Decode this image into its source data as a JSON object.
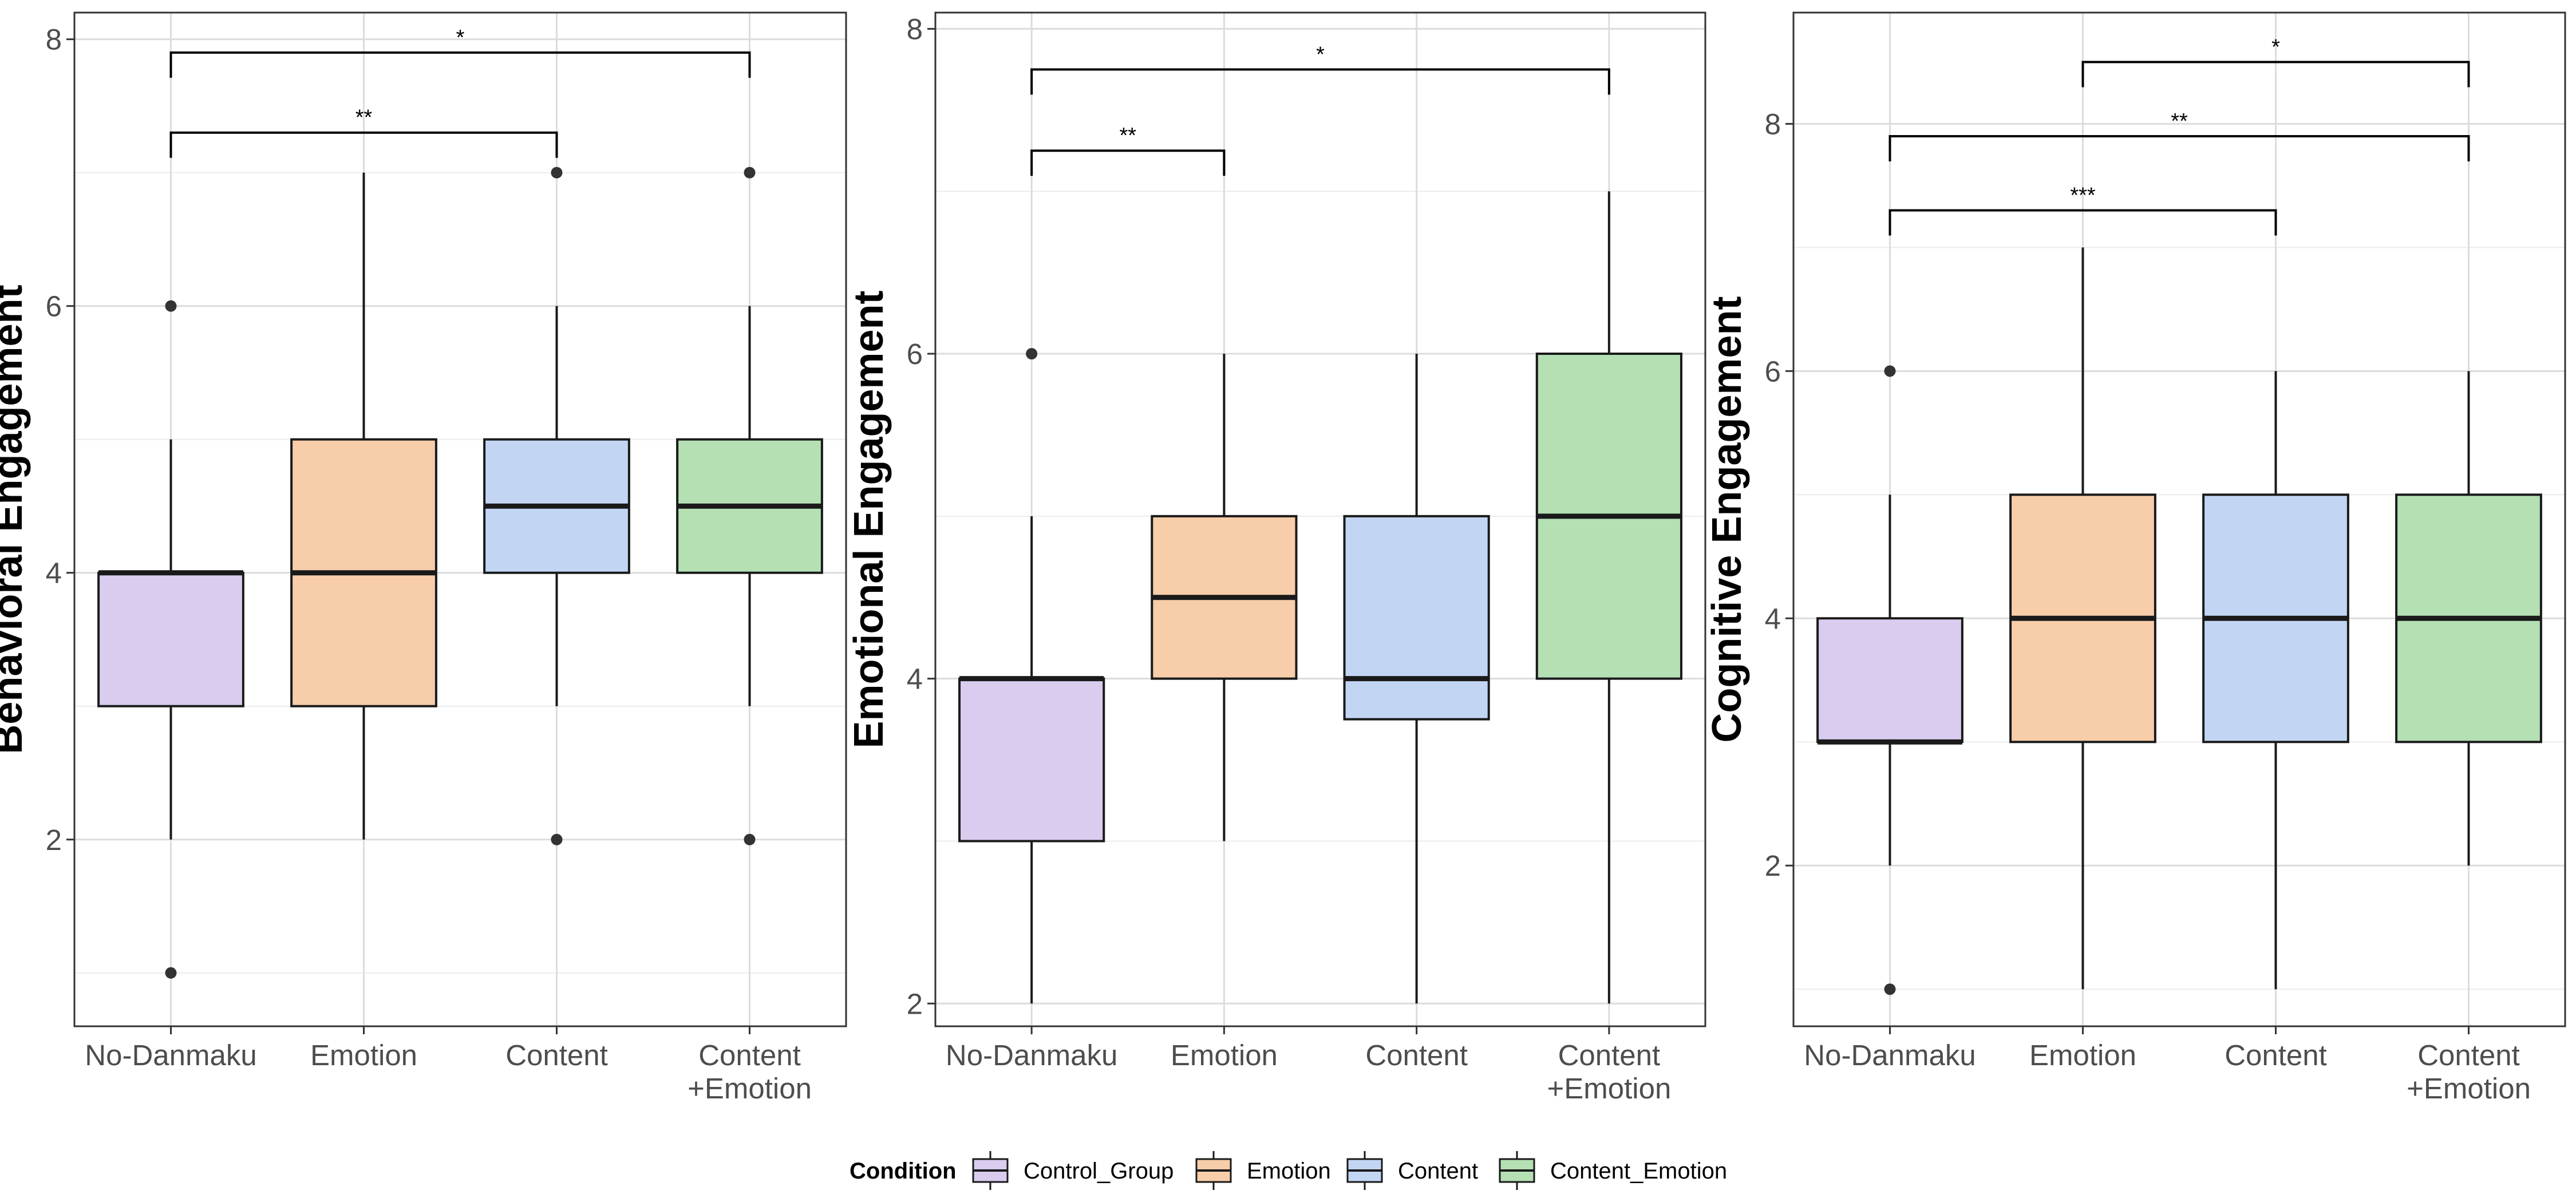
{
  "legend": {
    "title": "Condition",
    "items": [
      {
        "label": "Control_Group",
        "color": "#d9ccef"
      },
      {
        "label": "Emotion",
        "color": "#f7cdaa"
      },
      {
        "label": "Content",
        "color": "#c2d6f4"
      },
      {
        "label": "Content_Emotion",
        "color": "#b4e0b4"
      }
    ]
  },
  "chart_data": [
    {
      "type": "boxplot",
      "ylabel": "Behavioral Engagement",
      "xlabel": "",
      "categories": [
        "No-Danmaku",
        "Emotion",
        "Content",
        "Content\n+Emotion"
      ],
      "ylim": [
        0.6,
        8.2
      ],
      "yticks": [
        2,
        4,
        6,
        8
      ],
      "boxes": [
        {
          "q1": 3,
          "median": 4,
          "q3": 4,
          "whisker_low": 2,
          "whisker_high": 5,
          "outliers": [
            6,
            1
          ]
        },
        {
          "q1": 3,
          "median": 4,
          "q3": 5,
          "whisker_low": 2,
          "whisker_high": 7,
          "outliers": []
        },
        {
          "q1": 4,
          "median": 4.5,
          "q3": 5,
          "whisker_low": 3,
          "whisker_high": 6,
          "outliers": [
            7,
            2
          ]
        },
        {
          "q1": 4,
          "median": 4.5,
          "q3": 5,
          "whisker_low": 3,
          "whisker_high": 6,
          "outliers": [
            7,
            2
          ]
        }
      ],
      "significance": [
        {
          "from": 0,
          "to": 3,
          "y": 7.9,
          "label": "*"
        },
        {
          "from": 0,
          "to": 2,
          "y": 7.3,
          "label": "**"
        }
      ]
    },
    {
      "type": "boxplot",
      "ylabel": "Emotional Engagement",
      "xlabel": "",
      "categories": [
        "No-Danmaku",
        "Emotion",
        "Content",
        "Content\n+Emotion"
      ],
      "ylim": [
        1.86,
        8.1
      ],
      "yticks": [
        2,
        4,
        6,
        8
      ],
      "boxes": [
        {
          "q1": 3,
          "median": 4,
          "q3": 4,
          "whisker_low": 2,
          "whisker_high": 5,
          "outliers": [
            6
          ]
        },
        {
          "q1": 4,
          "median": 4.5,
          "q3": 5,
          "whisker_low": 3,
          "whisker_high": 6,
          "outliers": []
        },
        {
          "q1": 3.75,
          "median": 4,
          "q3": 5,
          "whisker_low": 2,
          "whisker_high": 6,
          "outliers": []
        },
        {
          "q1": 4,
          "median": 5,
          "q3": 6,
          "whisker_low": 2,
          "whisker_high": 7,
          "outliers": []
        }
      ],
      "significance": [
        {
          "from": 0,
          "to": 3,
          "y": 7.75,
          "label": "*"
        },
        {
          "from": 0,
          "to": 1,
          "y": 7.25,
          "label": "**"
        }
      ]
    },
    {
      "type": "boxplot",
      "ylabel": "Cognitive Engagement",
      "xlabel": "",
      "categories": [
        "No-Danmaku",
        "Emotion",
        "Content",
        "Content\n+Emotion"
      ],
      "ylim": [
        0.7,
        8.9
      ],
      "yticks": [
        2,
        4,
        6,
        8
      ],
      "boxes": [
        {
          "q1": 3,
          "median": 3,
          "q3": 4,
          "whisker_low": 2,
          "whisker_high": 5,
          "outliers": [
            6,
            1
          ]
        },
        {
          "q1": 3,
          "median": 4,
          "q3": 5,
          "whisker_low": 1,
          "whisker_high": 7,
          "outliers": []
        },
        {
          "q1": 3,
          "median": 4,
          "q3": 5,
          "whisker_low": 1,
          "whisker_high": 6,
          "outliers": []
        },
        {
          "q1": 3,
          "median": 4,
          "q3": 5,
          "whisker_low": 2,
          "whisker_high": 6,
          "outliers": []
        }
      ],
      "significance": [
        {
          "from": 1,
          "to": 3,
          "y": 8.5,
          "label": "*"
        },
        {
          "from": 0,
          "to": 3,
          "y": 7.9,
          "label": "**"
        },
        {
          "from": 0,
          "to": 2,
          "y": 7.3,
          "label": "***"
        }
      ]
    }
  ]
}
